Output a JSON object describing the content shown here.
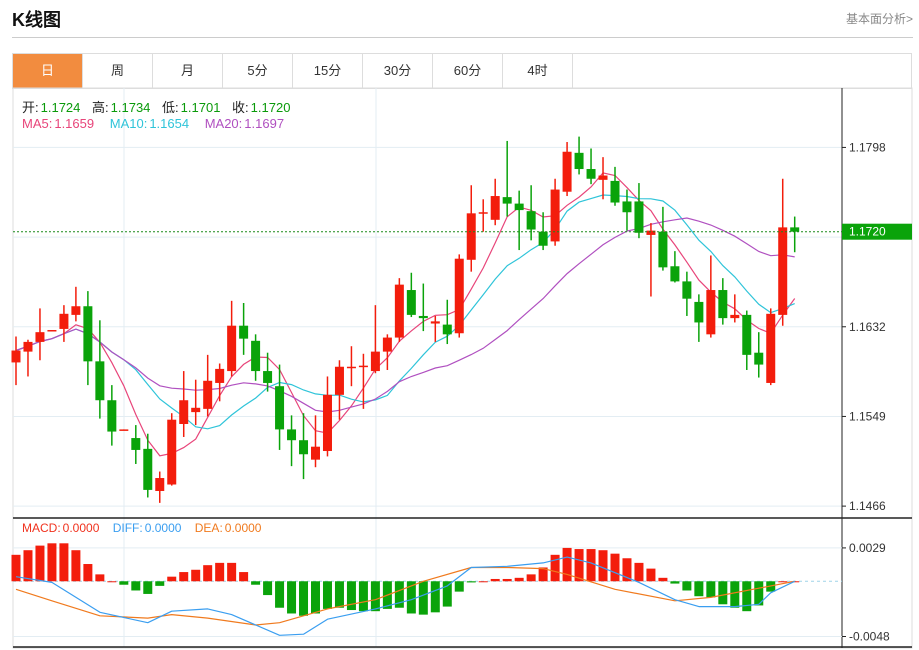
{
  "header": {
    "title": "K线图",
    "link": "基本面分析>"
  },
  "tabs": [
    {
      "label": "日",
      "active": true
    },
    {
      "label": "周"
    },
    {
      "label": "月"
    },
    {
      "label": "5分"
    },
    {
      "label": "15分"
    },
    {
      "label": "30分"
    },
    {
      "label": "60分"
    },
    {
      "label": "4时"
    }
  ],
  "ohlc": {
    "open_label": "开:",
    "open": "1.1724",
    "high_label": "高:",
    "high": "1.1734",
    "low_label": "低:",
    "low": "1.1701",
    "close_label": "收:",
    "close": "1.1720"
  },
  "ma": {
    "ma5_label": "MA5:",
    "ma5": "1.1659",
    "ma10_label": "MA10:",
    "ma10": "1.1654",
    "ma20_label": "MA20:",
    "ma20": "1.1697"
  },
  "macd_info": {
    "macd_label": "MACD:",
    "macd": "0.0000",
    "diff_label": "DIFF:",
    "diff": "0.0000",
    "dea_label": "DEA:",
    "dea": "0.0000"
  },
  "colors": {
    "up": "#f31d0c",
    "down": "#0aa30a",
    "accent": "#f28c3f",
    "ma5": "#e8457a",
    "ma10": "#2fc4d9",
    "ma20": "#b050c0",
    "diff": "#3a9ef0",
    "dea": "#f07a1e"
  },
  "chart_data": [
    {
      "type": "candlestick",
      "ylim": [
        1.1455,
        1.1853
      ],
      "y_ticks": [
        "1.1798",
        "1.1632",
        "1.1549",
        "1.1466"
      ],
      "last_price": "1.1720",
      "grid": true,
      "candles_ohlc": [
        [
          1.1599,
          1.161,
          1.1623,
          1.1578
        ],
        [
          1.1609,
          1.1618,
          1.162,
          1.1586
        ],
        [
          1.1618,
          1.1627,
          1.1649,
          1.1601
        ],
        [
          1.1628,
          1.1629,
          1.1629,
          1.1628
        ],
        [
          1.163,
          1.1644,
          1.1652,
          1.1618
        ],
        [
          1.1643,
          1.1651,
          1.1669,
          1.1637
        ],
        [
          1.1651,
          1.16,
          1.1665,
          1.1578
        ],
        [
          1.16,
          1.1564,
          1.1638,
          1.1547
        ],
        [
          1.1564,
          1.1535,
          1.1578,
          1.1522
        ],
        [
          1.1536,
          1.1537,
          1.1537,
          1.1536
        ],
        [
          1.1529,
          1.1518,
          1.1541,
          1.1505
        ],
        [
          1.1519,
          1.1481,
          1.1533,
          1.1474
        ],
        [
          1.148,
          1.1492,
          1.1498,
          1.1469
        ],
        [
          1.1486,
          1.1546,
          1.1552,
          1.1485
        ],
        [
          1.1542,
          1.1564,
          1.1591,
          1.153
        ],
        [
          1.1553,
          1.1557,
          1.1583,
          1.1541
        ],
        [
          1.1556,
          1.1582,
          1.1606,
          1.1549
        ],
        [
          1.158,
          1.1593,
          1.1598,
          1.1563
        ],
        [
          1.1591,
          1.1633,
          1.1656,
          1.1586
        ],
        [
          1.1633,
          1.1621,
          1.1654,
          1.1606
        ],
        [
          1.1619,
          1.1591,
          1.1625,
          1.1582
        ],
        [
          1.1591,
          1.158,
          1.1608,
          1.1572
        ],
        [
          1.1577,
          1.1537,
          1.1597,
          1.1518
        ],
        [
          1.1537,
          1.1527,
          1.155,
          1.1503
        ],
        [
          1.1527,
          1.1514,
          1.1552,
          1.1491
        ],
        [
          1.1509,
          1.1521,
          1.155,
          1.1502
        ],
        [
          1.1517,
          1.1569,
          1.1586,
          1.1512
        ],
        [
          1.1569,
          1.1595,
          1.1601,
          1.1546
        ],
        [
          1.1594,
          1.1595,
          1.1614,
          1.1577
        ],
        [
          1.1595,
          1.1596,
          1.1607,
          1.1556
        ],
        [
          1.1591,
          1.1609,
          1.1652,
          1.1589
        ],
        [
          1.1609,
          1.1622,
          1.1625,
          1.1592
        ],
        [
          1.1622,
          1.1671,
          1.1677,
          1.1618
        ],
        [
          1.1666,
          1.1643,
          1.1682,
          1.1641
        ],
        [
          1.1642,
          1.164,
          1.1672,
          1.1628
        ],
        [
          1.1635,
          1.1637,
          1.1642,
          1.1618
        ],
        [
          1.1634,
          1.1625,
          1.1657,
          1.1616
        ],
        [
          1.1626,
          1.1695,
          1.1699,
          1.1622
        ],
        [
          1.1694,
          1.1737,
          1.1763,
          1.1683
        ],
        [
          1.1737,
          1.1738,
          1.175,
          1.172
        ],
        [
          1.1731,
          1.1753,
          1.1769,
          1.1726
        ],
        [
          1.1752,
          1.1746,
          1.1804,
          1.1734
        ],
        [
          1.1746,
          1.174,
          1.1758,
          1.1703
        ],
        [
          1.1739,
          1.1722,
          1.1763,
          1.1712
        ],
        [
          1.172,
          1.1707,
          1.1738,
          1.1703
        ],
        [
          1.1711,
          1.1759,
          1.1769,
          1.1707
        ],
        [
          1.1757,
          1.1794,
          1.1803,
          1.1753
        ],
        [
          1.1793,
          1.1778,
          1.1808,
          1.1773
        ],
        [
          1.1778,
          1.1769,
          1.1797,
          1.1764
        ],
        [
          1.1768,
          1.1772,
          1.1789,
          1.175
        ],
        [
          1.1767,
          1.1747,
          1.178,
          1.1744
        ],
        [
          1.1748,
          1.1738,
          1.1759,
          1.1721
        ],
        [
          1.1748,
          1.1719,
          1.1765,
          1.1714
        ],
        [
          1.1717,
          1.1721,
          1.1728,
          1.166
        ],
        [
          1.172,
          1.1687,
          1.1743,
          1.1684
        ],
        [
          1.1688,
          1.1674,
          1.1702,
          1.1673
        ],
        [
          1.1674,
          1.1658,
          1.1683,
          1.1642
        ],
        [
          1.1655,
          1.1636,
          1.1662,
          1.1618
        ],
        [
          1.1625,
          1.1666,
          1.1698,
          1.1622
        ],
        [
          1.1666,
          1.164,
          1.1677,
          1.1634
        ],
        [
          1.164,
          1.1643,
          1.1662,
          1.1636
        ],
        [
          1.1643,
          1.1606,
          1.1647,
          1.1592
        ],
        [
          1.1608,
          1.1597,
          1.1627,
          1.1585
        ],
        [
          1.158,
          1.1644,
          1.1649,
          1.1578
        ],
        [
          1.1643,
          1.1724,
          1.1769,
          1.1633
        ],
        [
          1.1724,
          1.172,
          1.1734,
          1.1701
        ]
      ],
      "ma_periods": [
        5,
        10,
        20
      ]
    },
    {
      "type": "bar+line",
      "y_ticks": [
        "0.0029",
        "-0.0048"
      ],
      "ylim": [
        -0.0058,
        0.0055
      ],
      "macd_bars": [
        0.0023,
        0.0027,
        0.0031,
        0.0033,
        0.0033,
        0.0027,
        0.0015,
        0.0006,
        0.0,
        -0.0003,
        -0.0008,
        -0.0011,
        -0.0004,
        0.0004,
        0.0008,
        0.001,
        0.0014,
        0.0016,
        0.0016,
        0.0008,
        -0.0003,
        -0.0012,
        -0.0023,
        -0.0028,
        -0.003,
        -0.0028,
        -0.0024,
        -0.0023,
        -0.0025,
        -0.0026,
        -0.0026,
        -0.0024,
        -0.0023,
        -0.0028,
        -0.0029,
        -0.0027,
        -0.0022,
        -0.0009,
        -0.0001,
        0.0,
        0.0002,
        0.0002,
        0.0003,
        0.0006,
        0.0012,
        0.0023,
        0.0029,
        0.0028,
        0.0028,
        0.0027,
        0.0024,
        0.002,
        0.0016,
        0.0011,
        0.0003,
        -0.0002,
        -0.0008,
        -0.0013,
        -0.0014,
        -0.002,
        -0.0023,
        -0.0026,
        -0.0021,
        -0.0009,
        0.0,
        0.0
      ],
      "diff_points": [
        [
          1,
          0.0004
        ],
        [
          4,
          -0.0001
        ],
        [
          8,
          -0.0027
        ],
        [
          12,
          -0.0036
        ],
        [
          14,
          -0.0026
        ],
        [
          17,
          -0.0024
        ],
        [
          19,
          -0.0029
        ],
        [
          23,
          -0.0047
        ],
        [
          25,
          -0.0046
        ],
        [
          27,
          -0.0033
        ],
        [
          31,
          -0.0024
        ],
        [
          34,
          -0.0016
        ],
        [
          37,
          -0.0004
        ],
        [
          39,
          0.0012
        ],
        [
          42,
          0.0013
        ],
        [
          45,
          0.0016
        ],
        [
          47,
          0.0021
        ],
        [
          49,
          0.0016
        ],
        [
          53,
          -0.0001
        ],
        [
          56,
          -0.0016
        ],
        [
          58,
          -0.0022
        ],
        [
          61,
          -0.0022
        ],
        [
          63,
          -0.002
        ],
        [
          64,
          -0.001
        ],
        [
          66,
          0.0
        ]
      ],
      "dea_points": [
        [
          1,
          -0.0007
        ],
        [
          4,
          -0.0017
        ],
        [
          8,
          -0.003
        ],
        [
          12,
          -0.0032
        ],
        [
          14,
          -0.0029
        ],
        [
          17,
          -0.0032
        ],
        [
          21,
          -0.0038
        ],
        [
          23,
          -0.0036
        ],
        [
          27,
          -0.0024
        ],
        [
          31,
          -0.0016
        ],
        [
          35,
          0.0
        ],
        [
          39,
          0.0012
        ],
        [
          42,
          0.0012
        ],
        [
          45,
          0.0011
        ],
        [
          47,
          0.0006
        ],
        [
          51,
          -0.0007
        ],
        [
          56,
          -0.0017
        ],
        [
          59,
          -0.0014
        ],
        [
          63,
          -0.0006
        ],
        [
          66,
          0.0
        ]
      ]
    }
  ]
}
